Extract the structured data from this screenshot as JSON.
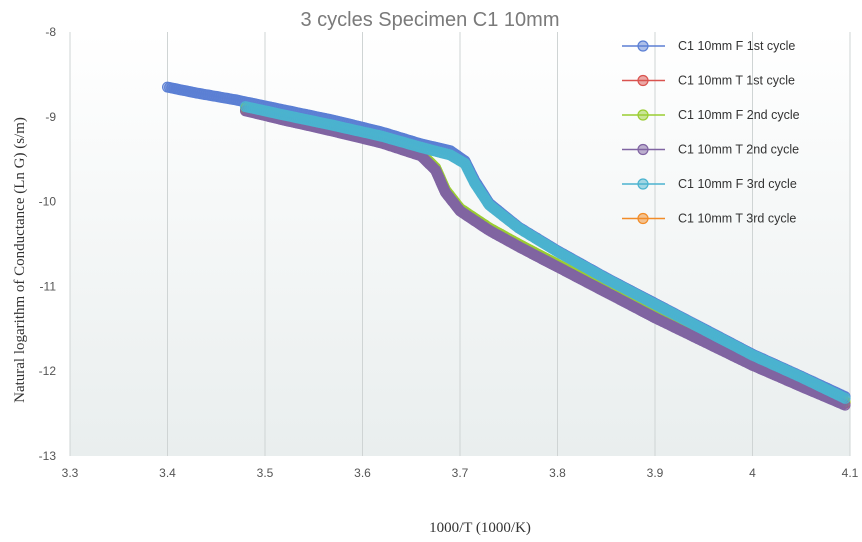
{
  "chart_data": {
    "type": "scatter",
    "title": "3 cycles Specimen C1 10mm",
    "xlabel": "1000/T  (1000/K)",
    "ylabel": "Natural logarithm of Conductance (Ln G)  (s/m)",
    "xlim": [
      3.3,
      4.1
    ],
    "ylim": [
      -13,
      -8
    ],
    "xticks": [
      3.3,
      3.4,
      3.5,
      3.6,
      3.7,
      3.8,
      3.9,
      4,
      4.1
    ],
    "xtick_labels": [
      "3.3",
      "3.4",
      "3.5",
      "3.6",
      "3.7",
      "3.8",
      "3.9",
      "4",
      "4.1"
    ],
    "yticks": [
      -8,
      -9,
      -10,
      -11,
      -12,
      -13
    ],
    "ytick_labels": [
      "-8",
      "-9",
      "-10",
      "-11",
      "-12",
      "-13"
    ],
    "grid": "vertical",
    "legend_position": "top-right",
    "series": [
      {
        "name": "C1 10mm F 1st cycle",
        "color": "#5b7fd4",
        "draw_order": 1,
        "points": [
          [
            3.4,
            -8.65
          ],
          [
            3.43,
            -8.72
          ],
          [
            3.47,
            -8.8
          ],
          [
            3.52,
            -8.92
          ],
          [
            3.57,
            -9.04
          ],
          [
            3.62,
            -9.18
          ],
          [
            3.66,
            -9.32
          ],
          [
            3.69,
            -9.4
          ],
          [
            3.705,
            -9.52
          ],
          [
            3.715,
            -9.75
          ],
          [
            3.73,
            -10.02
          ],
          [
            3.76,
            -10.3
          ],
          [
            3.8,
            -10.58
          ],
          [
            3.85,
            -10.9
          ],
          [
            3.9,
            -11.2
          ],
          [
            3.95,
            -11.5
          ],
          [
            4.0,
            -11.8
          ],
          [
            4.05,
            -12.06
          ],
          [
            4.095,
            -12.3
          ]
        ]
      },
      {
        "name": "C1 10mm T 1st cycle",
        "color": "#d9534f",
        "draw_order": 2,
        "points": [
          [
            3.48,
            -8.92
          ],
          [
            3.52,
            -9.03
          ],
          [
            3.57,
            -9.16
          ],
          [
            3.62,
            -9.3
          ],
          [
            3.66,
            -9.45
          ],
          [
            3.675,
            -9.62
          ],
          [
            3.685,
            -9.88
          ],
          [
            3.7,
            -10.1
          ],
          [
            3.73,
            -10.33
          ],
          [
            3.76,
            -10.52
          ],
          [
            3.8,
            -10.76
          ],
          [
            3.85,
            -11.06
          ],
          [
            3.9,
            -11.36
          ],
          [
            3.95,
            -11.64
          ],
          [
            4.0,
            -11.92
          ],
          [
            4.05,
            -12.17
          ],
          [
            4.095,
            -12.38
          ]
        ]
      },
      {
        "name": "C1 10mm F 2nd cycle",
        "color": "#9acd32",
        "draw_order": 3,
        "points": [
          [
            3.48,
            -8.9
          ],
          [
            3.52,
            -9.01
          ],
          [
            3.57,
            -9.14
          ],
          [
            3.62,
            -9.28
          ],
          [
            3.66,
            -9.43
          ],
          [
            3.675,
            -9.6
          ],
          [
            3.685,
            -9.86
          ],
          [
            3.7,
            -10.08
          ],
          [
            3.73,
            -10.31
          ],
          [
            3.76,
            -10.5
          ],
          [
            3.8,
            -10.74
          ],
          [
            3.85,
            -11.04
          ],
          [
            3.9,
            -11.34
          ],
          [
            3.95,
            -11.62
          ],
          [
            4.0,
            -11.9
          ],
          [
            4.05,
            -12.15
          ],
          [
            4.095,
            -12.36
          ]
        ]
      },
      {
        "name": "C1 10mm T 2nd cycle",
        "color": "#8064a2",
        "draw_order": 4,
        "points": [
          [
            3.48,
            -8.93
          ],
          [
            3.52,
            -9.04
          ],
          [
            3.57,
            -9.17
          ],
          [
            3.62,
            -9.31
          ],
          [
            3.66,
            -9.46
          ],
          [
            3.675,
            -9.63
          ],
          [
            3.685,
            -9.89
          ],
          [
            3.7,
            -10.11
          ],
          [
            3.73,
            -10.34
          ],
          [
            3.76,
            -10.53
          ],
          [
            3.8,
            -10.77
          ],
          [
            3.85,
            -11.07
          ],
          [
            3.9,
            -11.37
          ],
          [
            3.95,
            -11.65
          ],
          [
            4.0,
            -11.93
          ],
          [
            4.05,
            -12.18
          ],
          [
            4.095,
            -12.4
          ]
        ]
      },
      {
        "name": "C1 10mm F 3rd cycle",
        "color": "#4bb3cf",
        "draw_order": 5,
        "points": [
          [
            3.48,
            -8.88
          ],
          [
            3.52,
            -8.98
          ],
          [
            3.57,
            -9.1
          ],
          [
            3.62,
            -9.23
          ],
          [
            3.66,
            -9.36
          ],
          [
            3.69,
            -9.45
          ],
          [
            3.705,
            -9.55
          ],
          [
            3.715,
            -9.78
          ],
          [
            3.73,
            -10.04
          ],
          [
            3.76,
            -10.31
          ],
          [
            3.8,
            -10.59
          ],
          [
            3.85,
            -10.91
          ],
          [
            3.9,
            -11.21
          ],
          [
            3.95,
            -11.51
          ],
          [
            4.0,
            -11.81
          ],
          [
            4.05,
            -12.07
          ],
          [
            4.095,
            -12.32
          ]
        ]
      },
      {
        "name": "C1 10mm T 3rd cycle",
        "color": "#f28c28",
        "draw_order": 0,
        "points": [
          [
            3.48,
            -8.91
          ],
          [
            3.52,
            -9.02
          ],
          [
            3.57,
            -9.15
          ],
          [
            3.62,
            -9.29
          ],
          [
            3.66,
            -9.44
          ],
          [
            3.675,
            -9.61
          ],
          [
            3.685,
            -9.87
          ],
          [
            3.7,
            -10.09
          ],
          [
            3.73,
            -10.32
          ],
          [
            3.76,
            -10.51
          ],
          [
            3.8,
            -10.75
          ],
          [
            3.85,
            -11.05
          ],
          [
            3.9,
            -11.35
          ],
          [
            3.95,
            -11.63
          ],
          [
            4.0,
            -11.91
          ],
          [
            4.05,
            -12.16
          ],
          [
            4.095,
            -12.37
          ]
        ]
      }
    ]
  }
}
